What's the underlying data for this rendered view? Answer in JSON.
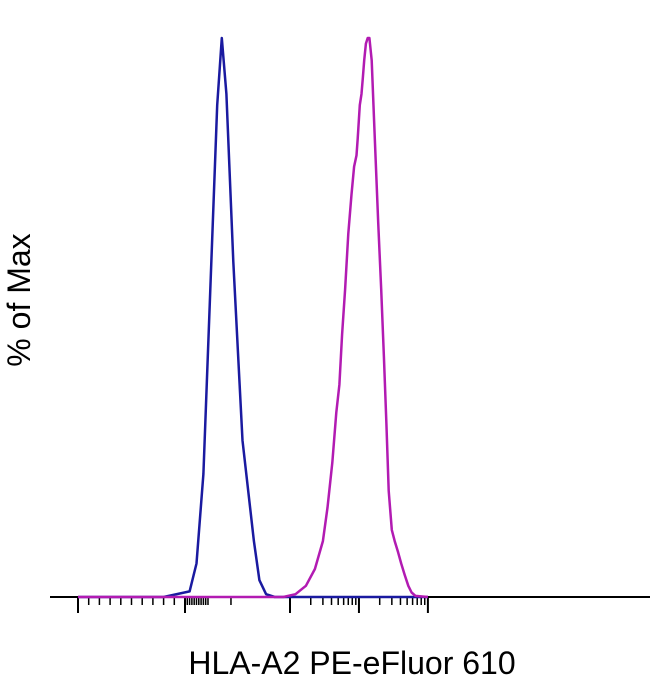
{
  "chart_data": {
    "type": "line",
    "title": "",
    "xlabel": "HLA-A2 PE-eFluor 610",
    "ylabel": "% of Max",
    "x_scale": "biexponential",
    "xlim": [
      -100,
      100000
    ],
    "ylim": [
      0,
      100
    ],
    "x_major_ticks": [
      0,
      1000,
      10000,
      100000
    ],
    "grid": false,
    "legend": "none",
    "series": [
      {
        "color": "#1a1aa0",
        "points": [
          [
            -100,
            0
          ],
          [
            -20,
            0
          ],
          [
            20,
            1
          ],
          [
            50,
            6
          ],
          [
            80,
            22
          ],
          [
            110,
            55
          ],
          [
            140,
            88
          ],
          [
            160,
            100
          ],
          [
            180,
            90
          ],
          [
            210,
            60
          ],
          [
            250,
            28
          ],
          [
            300,
            10
          ],
          [
            360,
            3
          ],
          [
            450,
            0.5
          ],
          [
            600,
            0
          ],
          [
            100000,
            0
          ]
        ]
      },
      {
        "color": "#b21bb2",
        "points": [
          [
            -100,
            0
          ],
          [
            800,
            0
          ],
          [
            1200,
            0.5
          ],
          [
            1700,
            2
          ],
          [
            2300,
            5
          ],
          [
            3000,
            10
          ],
          [
            3500,
            16
          ],
          [
            4100,
            24
          ],
          [
            4700,
            33
          ],
          [
            5200,
            38
          ],
          [
            5700,
            47
          ],
          [
            6300,
            55
          ],
          [
            7000,
            65
          ],
          [
            7800,
            72
          ],
          [
            8500,
            77
          ],
          [
            9200,
            79
          ],
          [
            9600,
            82
          ],
          [
            10300,
            88
          ],
          [
            10900,
            90
          ],
          [
            11400,
            93
          ],
          [
            11900,
            96
          ],
          [
            12600,
            99
          ],
          [
            13400,
            100
          ],
          [
            14200,
            100
          ],
          [
            15300,
            96
          ],
          [
            17000,
            82
          ],
          [
            19000,
            67
          ],
          [
            21000,
            55
          ],
          [
            23000,
            43
          ],
          [
            25000,
            31
          ],
          [
            27000,
            19
          ],
          [
            30000,
            12
          ],
          [
            33000,
            10
          ],
          [
            37000,
            8
          ],
          [
            41000,
            6
          ],
          [
            46000,
            4
          ],
          [
            52000,
            2
          ],
          [
            58000,
            0.8
          ],
          [
            66000,
            0.2
          ],
          [
            100000,
            0
          ]
        ]
      }
    ]
  }
}
